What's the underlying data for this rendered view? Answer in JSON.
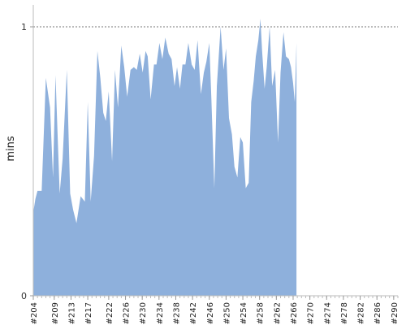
{
  "chart_data": {
    "type": "area",
    "ylabel": "mins",
    "ylim": [
      0,
      1
    ],
    "y_ticks": [
      0,
      1
    ],
    "y_tick_labels": [
      "0",
      "1"
    ],
    "reference_line": {
      "y": 1,
      "style": "dotted"
    },
    "x_start": 204,
    "x_end": 291,
    "x_tick_labels": [
      "#204",
      "#209",
      "#213",
      "#217",
      "#222",
      "#226",
      "#230",
      "#234",
      "#238",
      "#242",
      "#246",
      "#250",
      "#254",
      "#258",
      "#262",
      "#266",
      "#270",
      "#274",
      "#278",
      "#282",
      "#286",
      "#290"
    ],
    "series": [
      {
        "color": "#8eb0dc",
        "points": [
          [
            204,
            0.31
          ],
          [
            204.5,
            0.36
          ],
          [
            205,
            0.39
          ],
          [
            206,
            0.39
          ],
          [
            207,
            0.81
          ],
          [
            208,
            0.7
          ],
          [
            208.7,
            0.44
          ],
          [
            209.3,
            0.82
          ],
          [
            210.3,
            0.38
          ],
          [
            211,
            0.51
          ],
          [
            212,
            0.84
          ],
          [
            212.8,
            0.38
          ],
          [
            213.5,
            0.32
          ],
          [
            214.3,
            0.27
          ],
          [
            215.3,
            0.37
          ],
          [
            216.3,
            0.35
          ],
          [
            217,
            0.72
          ],
          [
            217.7,
            0.35
          ],
          [
            218.5,
            0.52
          ],
          [
            219.3,
            0.91
          ],
          [
            220,
            0.81
          ],
          [
            220.7,
            0.68
          ],
          [
            221.3,
            0.65
          ],
          [
            222,
            0.76
          ],
          [
            222.8,
            0.5
          ],
          [
            223.5,
            0.84
          ],
          [
            224.2,
            0.7
          ],
          [
            225,
            0.93
          ],
          [
            225.7,
            0.85
          ],
          [
            226.4,
            0.74
          ],
          [
            227.2,
            0.84
          ],
          [
            228,
            0.85
          ],
          [
            228.7,
            0.84
          ],
          [
            229.4,
            0.9
          ],
          [
            230.1,
            0.83
          ],
          [
            230.8,
            0.91
          ],
          [
            231.3,
            0.89
          ],
          [
            232,
            0.73
          ],
          [
            232.8,
            0.86
          ],
          [
            233.4,
            0.86
          ],
          [
            234.1,
            0.94
          ],
          [
            234.8,
            0.88
          ],
          [
            235.5,
            0.96
          ],
          [
            236.3,
            0.9
          ],
          [
            237,
            0.88
          ],
          [
            237.7,
            0.78
          ],
          [
            238.3,
            0.85
          ],
          [
            239,
            0.77
          ],
          [
            239.6,
            0.86
          ],
          [
            240.3,
            0.86
          ],
          [
            241,
            0.94
          ],
          [
            241.8,
            0.86
          ],
          [
            242.5,
            0.84
          ],
          [
            243.2,
            0.95
          ],
          [
            244,
            0.75
          ],
          [
            244.7,
            0.83
          ],
          [
            245.3,
            0.87
          ],
          [
            246,
            0.94
          ],
          [
            246.5,
            0.73
          ],
          [
            247.2,
            0.4
          ],
          [
            247.8,
            0.78
          ],
          [
            248.7,
            1.0
          ],
          [
            249.4,
            0.84
          ],
          [
            250,
            0.92
          ],
          [
            250.7,
            0.66
          ],
          [
            251.4,
            0.6
          ],
          [
            252,
            0.48
          ],
          [
            252.7,
            0.44
          ],
          [
            253.4,
            0.59
          ],
          [
            254,
            0.57
          ],
          [
            254.7,
            0.4
          ],
          [
            255.4,
            0.42
          ],
          [
            256,
            0.72
          ],
          [
            256.6,
            0.8
          ],
          [
            257.1,
            0.89
          ],
          [
            257.7,
            0.95
          ],
          [
            258.2,
            1.03
          ],
          [
            258.6,
            0.91
          ],
          [
            259.2,
            0.77
          ],
          [
            259.7,
            0.85
          ],
          [
            260.4,
            1.0
          ],
          [
            261,
            0.78
          ],
          [
            261.7,
            0.84
          ],
          [
            262.4,
            0.57
          ],
          [
            263,
            0.83
          ],
          [
            263.7,
            0.98
          ],
          [
            264.3,
            0.89
          ],
          [
            265,
            0.88
          ],
          [
            265.5,
            0.85
          ],
          [
            266,
            0.79
          ],
          [
            266.4,
            0.72
          ],
          [
            266.8,
            0.94
          ]
        ]
      }
    ]
  }
}
